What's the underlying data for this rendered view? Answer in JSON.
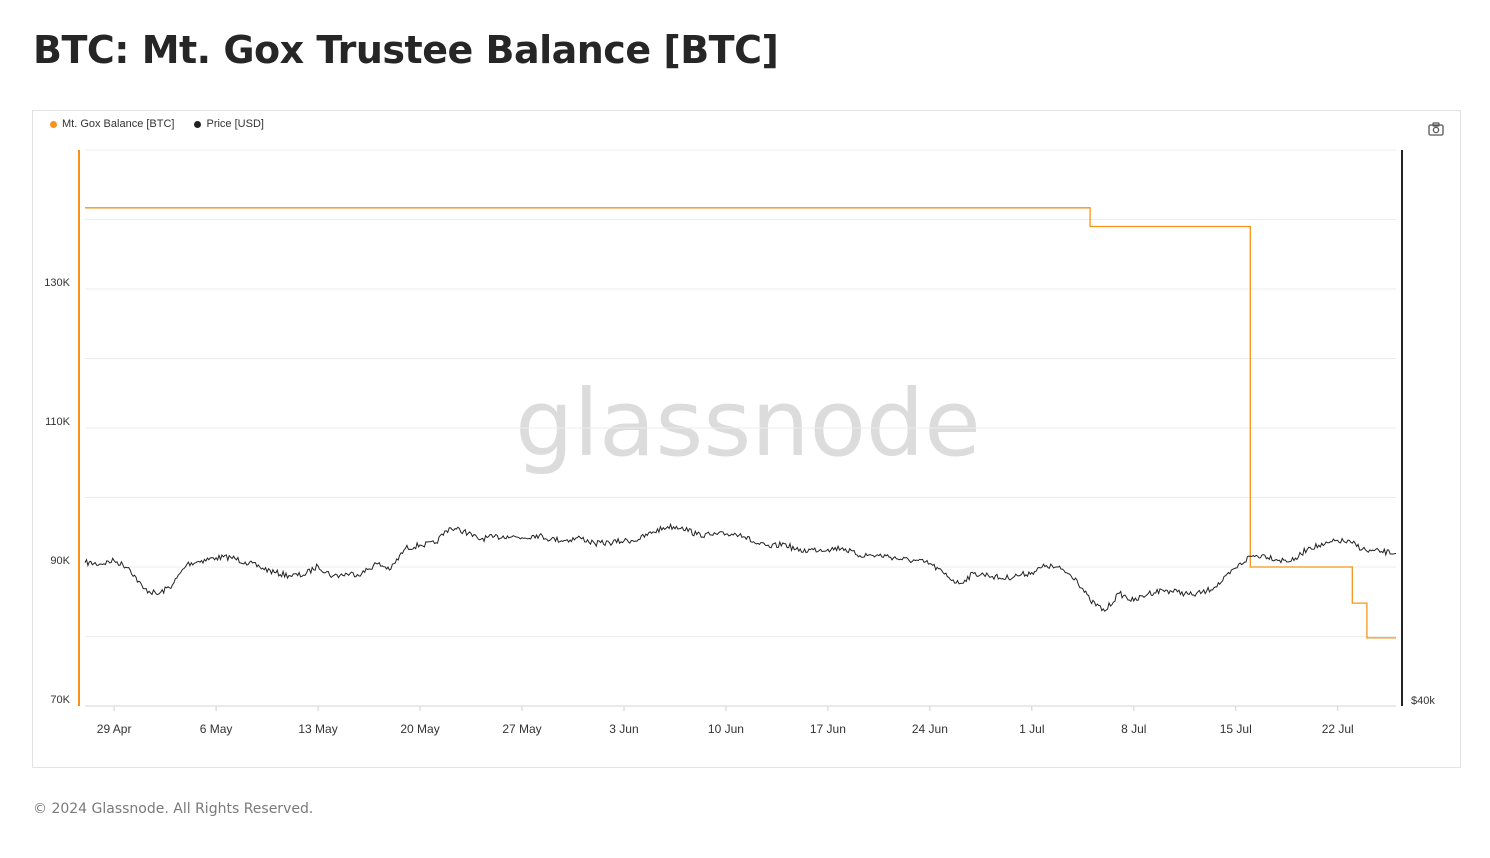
{
  "page": {
    "title": "BTC: Mt. Gox Trustee Balance [BTC]",
    "footer": "© 2024 Glassnode. All Rights Reserved.",
    "watermark": "glassnode"
  },
  "legend": [
    {
      "label": "Mt. Gox Balance [BTC]",
      "color": "#f7931a"
    },
    {
      "label": "Price [USD]",
      "color": "#222222"
    }
  ],
  "toolbar": {
    "camera_icon": "camera-icon"
  },
  "chart_data": {
    "type": "line",
    "title": "BTC: Mt. Gox Trustee Balance [BTC]",
    "x_start": "2024-04-27",
    "x_end": "2024-07-26",
    "x_ticks": [
      "29 Apr",
      "6 May",
      "13 May",
      "20 May",
      "27 May",
      "3 Jun",
      "10 Jun",
      "17 Jun",
      "24 Jun",
      "1 Jul",
      "8 Jul",
      "15 Jul",
      "22 Jul"
    ],
    "y_left": {
      "ticks": [
        "130K",
        "110K",
        "90K",
        "70K"
      ],
      "tick_values": [
        130000,
        110000,
        90000,
        70000
      ],
      "range": [
        70000,
        150000
      ]
    },
    "y_right": {
      "ticks": [
        "$40k"
      ],
      "scale": "log"
    },
    "grid": true,
    "legend_position": "top-left",
    "series": [
      {
        "name": "Mt. Gox Balance [BTC]",
        "axis": "left",
        "color": "#f7931a",
        "step": true,
        "points": [
          [
            "2024-04-27",
            141686
          ],
          [
            "2024-07-05",
            141686
          ],
          [
            "2024-07-05",
            138986
          ],
          [
            "2024-07-16",
            138986
          ],
          [
            "2024-07-16",
            90000
          ],
          [
            "2024-07-23",
            90000
          ],
          [
            "2024-07-23",
            84800
          ],
          [
            "2024-07-24",
            84800
          ],
          [
            "2024-07-24",
            79800
          ],
          [
            "2024-07-26",
            79800
          ]
        ]
      },
      {
        "name": "Price [USD]",
        "axis": "right",
        "color": "#222222",
        "points": [
          [
            "2024-04-27",
            63500
          ],
          [
            "2024-04-28",
            63200
          ],
          [
            "2024-04-29",
            63900
          ],
          [
            "2024-04-30",
            62500
          ],
          [
            "2024-05-01",
            58400
          ],
          [
            "2024-05-02",
            57300
          ],
          [
            "2024-05-03",
            59100
          ],
          [
            "2024-05-04",
            63200
          ],
          [
            "2024-05-05",
            63900
          ],
          [
            "2024-05-06",
            64500
          ],
          [
            "2024-05-07",
            64600
          ],
          [
            "2024-05-08",
            63600
          ],
          [
            "2024-05-09",
            62600
          ],
          [
            "2024-05-10",
            61500
          ],
          [
            "2024-05-11",
            60900
          ],
          [
            "2024-05-12",
            61000
          ],
          [
            "2024-05-13",
            62800
          ],
          [
            "2024-05-14",
            60800
          ],
          [
            "2024-05-15",
            61200
          ],
          [
            "2024-05-16",
            61300
          ],
          [
            "2024-05-17",
            63300
          ],
          [
            "2024-05-18",
            62200
          ],
          [
            "2024-05-19",
            66500
          ],
          [
            "2024-05-20",
            67200
          ],
          [
            "2024-05-21",
            67500
          ],
          [
            "2024-05-22",
            71000
          ],
          [
            "2024-05-23",
            70300
          ],
          [
            "2024-05-24",
            68500
          ],
          [
            "2024-05-25",
            68900
          ],
          [
            "2024-05-26",
            69200
          ],
          [
            "2024-05-27",
            68800
          ],
          [
            "2024-05-28",
            69400
          ],
          [
            "2024-05-29",
            68500
          ],
          [
            "2024-05-30",
            68200
          ],
          [
            "2024-05-31",
            68800
          ],
          [
            "2024-06-01",
            67500
          ],
          [
            "2024-06-02",
            67700
          ],
          [
            "2024-06-03",
            68100
          ],
          [
            "2024-06-04",
            68400
          ],
          [
            "2024-06-05",
            70100
          ],
          [
            "2024-06-06",
            71300
          ],
          [
            "2024-06-07",
            71200
          ],
          [
            "2024-06-08",
            69500
          ],
          [
            "2024-06-09",
            69400
          ],
          [
            "2024-06-10",
            69600
          ],
          [
            "2024-06-11",
            69700
          ],
          [
            "2024-06-12",
            67600
          ],
          [
            "2024-06-13",
            66700
          ],
          [
            "2024-06-14",
            67500
          ],
          [
            "2024-06-15",
            65900
          ],
          [
            "2024-06-16",
            66200
          ],
          [
            "2024-06-17",
            66300
          ],
          [
            "2024-06-18",
            66600
          ],
          [
            "2024-06-19",
            65100
          ],
          [
            "2024-06-20",
            65000
          ],
          [
            "2024-06-21",
            64900
          ],
          [
            "2024-06-22",
            64200
          ],
          [
            "2024-06-23",
            63900
          ],
          [
            "2024-06-24",
            63300
          ],
          [
            "2024-06-25",
            61200
          ],
          [
            "2024-06-26",
            59300
          ],
          [
            "2024-06-27",
            61300
          ],
          [
            "2024-06-28",
            61000
          ],
          [
            "2024-06-29",
            60300
          ],
          [
            "2024-06-30",
            60900
          ],
          [
            "2024-07-01",
            61500
          ],
          [
            "2024-07-02",
            62900
          ],
          [
            "2024-07-03",
            62200
          ],
          [
            "2024-07-04",
            60400
          ],
          [
            "2024-07-05",
            56200
          ],
          [
            "2024-07-06",
            54300
          ],
          [
            "2024-07-07",
            57500
          ],
          [
            "2024-07-08",
            56100
          ],
          [
            "2024-07-09",
            57500
          ],
          [
            "2024-07-10",
            58100
          ],
          [
            "2024-07-11",
            57800
          ],
          [
            "2024-07-12",
            57200
          ],
          [
            "2024-07-13",
            57900
          ],
          [
            "2024-07-14",
            59600
          ],
          [
            "2024-07-15",
            62400
          ],
          [
            "2024-07-16",
            64800
          ],
          [
            "2024-07-17",
            65000
          ],
          [
            "2024-07-18",
            64000
          ],
          [
            "2024-07-19",
            63900
          ],
          [
            "2024-07-20",
            66700
          ],
          [
            "2024-07-21",
            67100
          ],
          [
            "2024-07-22",
            68200
          ],
          [
            "2024-07-23",
            67600
          ],
          [
            "2024-07-24",
            65900
          ],
          [
            "2024-07-25",
            65800
          ],
          [
            "2024-07-26",
            65400
          ]
        ]
      }
    ]
  }
}
